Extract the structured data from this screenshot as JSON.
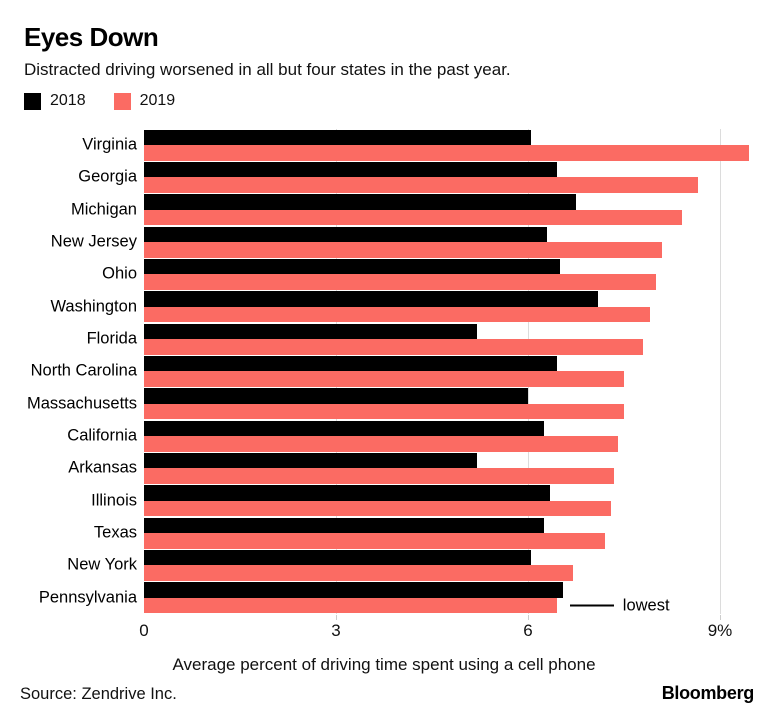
{
  "header": {
    "title": "Eyes Down",
    "subtitle": "Distracted driving worsened in all but four states in the past year."
  },
  "legend": [
    {
      "label": "2018",
      "color": "#000000"
    },
    {
      "label": "2019",
      "color": "#FB6B63"
    }
  ],
  "chart_data": {
    "type": "bar",
    "orientation": "horizontal",
    "title": "Eyes Down",
    "subtitle": "Distracted driving worsened in all but four states in the past year.",
    "categories": [
      "Virginia",
      "Georgia",
      "Michigan",
      "New Jersey",
      "Ohio",
      "Washington",
      "Florida",
      "North Carolina",
      "Massachusetts",
      "California",
      "Arkansas",
      "Illinois",
      "Texas",
      "New York",
      "Pennsylvania"
    ],
    "series": [
      {
        "name": "2018",
        "color": "#000000",
        "values": [
          6.05,
          6.45,
          6.75,
          6.3,
          6.5,
          7.1,
          5.2,
          6.45,
          6.0,
          6.25,
          5.2,
          6.35,
          6.25,
          6.05,
          6.55
        ]
      },
      {
        "name": "2019",
        "color": "#FB6B63",
        "values": [
          9.45,
          8.65,
          8.4,
          8.1,
          8.0,
          7.9,
          7.8,
          7.5,
          7.5,
          7.4,
          7.35,
          7.3,
          7.2,
          6.7,
          6.45
        ]
      }
    ],
    "xlabel": "Average percent of driving time spent using a cell phone",
    "ylabel": "",
    "xlim": [
      0,
      9.5
    ],
    "x_ticks": [
      {
        "value": 0,
        "label": "0"
      },
      {
        "value": 3,
        "label": "3"
      },
      {
        "value": 6,
        "label": "6"
      },
      {
        "value": 9,
        "label": "9%"
      }
    ],
    "grid": "vertical",
    "legend_position": "top-left",
    "annotation": {
      "text": "lowest",
      "category": "Pennsylvania",
      "series": "2019"
    }
  },
  "colors": {
    "grid": "#DCDCDC",
    "tick": "#CCCCCC",
    "annotation_line": "#000000"
  },
  "footer": {
    "source": "Source: Zendrive Inc.",
    "brand": "Bloomberg"
  }
}
